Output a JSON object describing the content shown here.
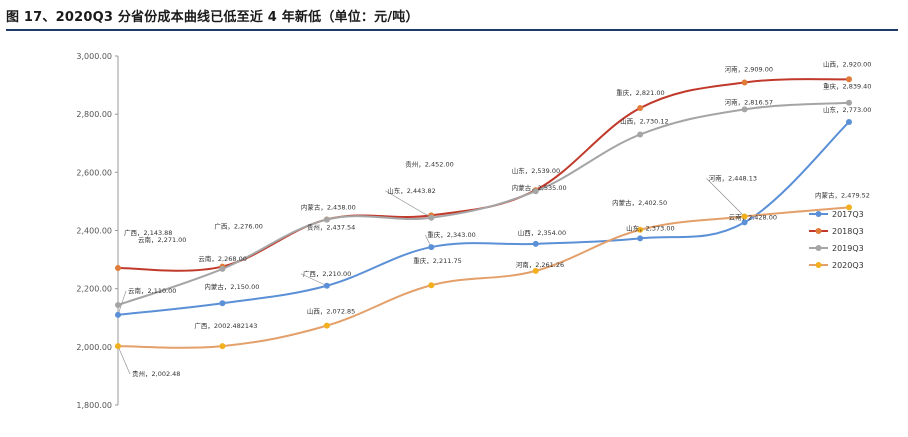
{
  "page": {
    "title": "图 17、2020Q3 分省份成本曲线已低至近 4 年新低（单位：元/吨）"
  },
  "chart_data": {
    "type": "line",
    "title": "图 17、2020Q3 分省份成本曲线已低至近 4 年新低（单位：元/吨）",
    "xlabel": "",
    "ylabel": "",
    "ylim": [
      1800,
      3000
    ],
    "yticks": [
      "3,000.00",
      "2,800.00",
      "2,600.00",
      "2,400.00",
      "2,200.00",
      "2,000.00",
      "1,800.00"
    ],
    "grid": false,
    "legend_position": "right",
    "series": [
      {
        "name": "2017Q3",
        "color": "#5b8fd6",
        "points": [
          {
            "x": 0,
            "y": 2110.0,
            "label": "云南，2,110.00"
          },
          {
            "x": 1,
            "y": 2150.0,
            "label": "内蒙古，2,150.00"
          },
          {
            "x": 2,
            "y": 2210.0,
            "label": "广西，2,210.00"
          },
          {
            "x": 3,
            "y": 2343.0,
            "label": "重庆，2,343.00"
          },
          {
            "x": 4,
            "y": 2354.0,
            "label": "山西，2,354.00"
          },
          {
            "x": 5,
            "y": 2373.0,
            "label": "山东，2,373.00"
          },
          {
            "x": 6,
            "y": 2428.0,
            "label": "云南，2,428.00"
          },
          {
            "x": 7,
            "y": 2773.0,
            "label": "山东，2,773.00"
          }
        ]
      },
      {
        "name": "2018Q3",
        "color": "#e07b39",
        "points": [
          {
            "x": 0,
            "y": 2271.0,
            "label": "云南，2,271.00"
          },
          {
            "x": 1,
            "y": 2276.0,
            "label": "广西，2,276.00"
          },
          {
            "x": 2,
            "y": 2438.0,
            "label": "内蒙古，2,438.00"
          },
          {
            "x": 3,
            "y": 2452.0,
            "label": "贵州，2,452.00"
          },
          {
            "x": 4,
            "y": 2539.0,
            "label": "山东，2,539.00"
          },
          {
            "x": 5,
            "y": 2821.0,
            "label": "重庆，2,821.00"
          },
          {
            "x": 6,
            "y": 2909.0,
            "label": "河南，2,909.00"
          },
          {
            "x": 7,
            "y": 2920.0,
            "label": "山西，2,920.00"
          }
        ]
      },
      {
        "name": "2019Q3",
        "color": "#a5a5a5",
        "points": [
          {
            "x": 0,
            "y": 2143.88,
            "label": "广西，2,143.88"
          },
          {
            "x": 1,
            "y": 2268.0,
            "label": "云南，2,268.00"
          },
          {
            "x": 2,
            "y": 2437.54,
            "label": "贵州，2,437.54"
          },
          {
            "x": 3,
            "y": 2443.82,
            "label": "山东，2,443.82"
          },
          {
            "x": 4,
            "y": 2535.0,
            "label": "内蒙古，2,535.00"
          },
          {
            "x": 5,
            "y": 2730.12,
            "label": "山西，2,730.12"
          },
          {
            "x": 6,
            "y": 2816.57,
            "label": "河南，2,816.57"
          },
          {
            "x": 7,
            "y": 2839.4,
            "label": "重庆，2,839.40"
          }
        ]
      },
      {
        "name": "2020Q3",
        "color": "#f2b01e",
        "points": [
          {
            "x": 0,
            "y": 2002.48,
            "label": "贵州，2,002.48"
          },
          {
            "x": 1,
            "y": 2002.482143,
            "label": "广西，2002.482143"
          },
          {
            "x": 2,
            "y": 2072.85,
            "label": "山西，2,072.85"
          },
          {
            "x": 3,
            "y": 2211.75,
            "label": "重庆，2,211.75"
          },
          {
            "x": 4,
            "y": 2261.26,
            "label": "河南，2,261.26"
          },
          {
            "x": 5,
            "y": 2402.5,
            "label": "内蒙古，2,402.50"
          },
          {
            "x": 6,
            "y": 2448.13,
            "label": "河南，2,448.13"
          },
          {
            "x": 7,
            "y": 2479.52,
            "label": "内蒙古，2,479.52"
          }
        ]
      }
    ]
  }
}
